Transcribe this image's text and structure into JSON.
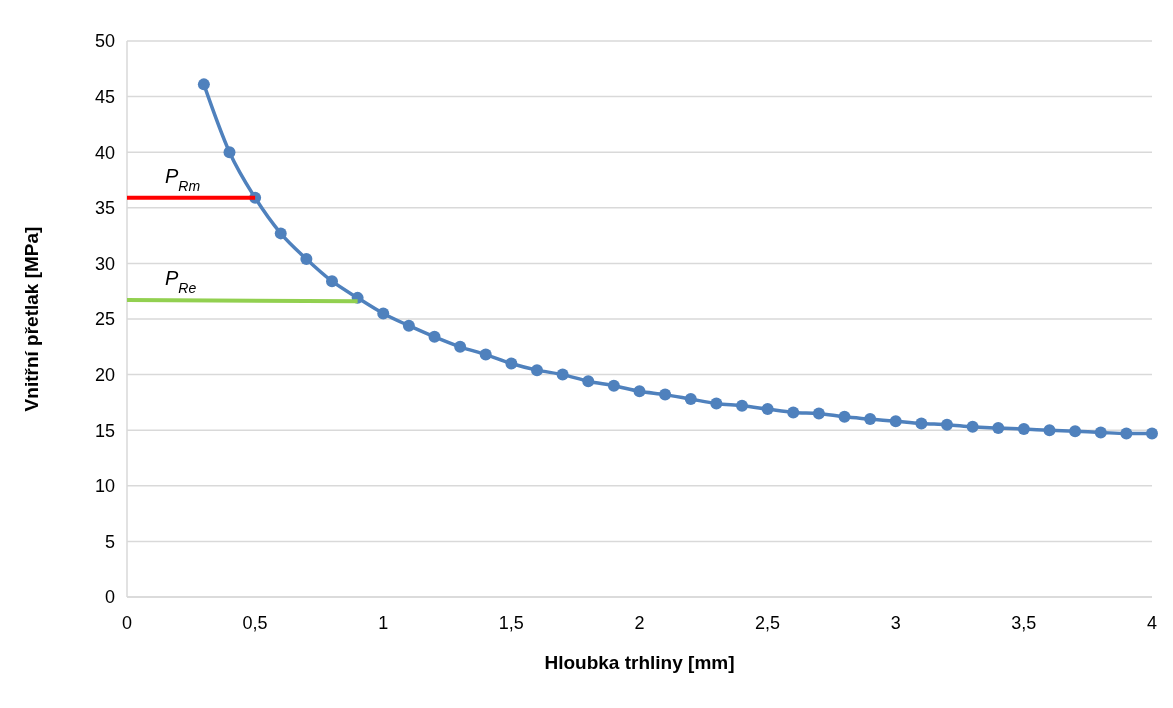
{
  "chart_data": {
    "type": "line",
    "xlabel": "Hloubka trhliny [mm]",
    "ylabel": "Vnitřní přetlak [MPa]",
    "xlim": [
      0,
      4
    ],
    "ylim": [
      0,
      50
    ],
    "xticks": [
      0,
      {
        "value": 0.5,
        "label": "0,5"
      },
      1,
      {
        "value": 1.5,
        "label": "1,5"
      },
      2,
      {
        "value": 2.5,
        "label": "2,5"
      },
      3,
      {
        "value": 3.5,
        "label": "3,5"
      },
      4
    ],
    "yticks": [
      0,
      5,
      10,
      15,
      20,
      25,
      30,
      35,
      40,
      45,
      50
    ],
    "grid": "y",
    "series": [
      {
        "color": "#4f81bd",
        "marker": "circle",
        "x": [
          0.3,
          0.4,
          0.5,
          0.6,
          0.7,
          0.8,
          0.9,
          1.0,
          1.1,
          1.2,
          1.3,
          1.4,
          1.5,
          1.6,
          1.7,
          1.8,
          1.9,
          2.0,
          2.1,
          2.2,
          2.3,
          2.4,
          2.5,
          2.6,
          2.7,
          2.8,
          2.9,
          3.0,
          3.1,
          3.2,
          3.3,
          3.4,
          3.5,
          3.6,
          3.7,
          3.8,
          3.9,
          4.0
        ],
        "values": [
          46.1,
          40.0,
          35.9,
          32.7,
          30.4,
          28.4,
          26.9,
          25.5,
          24.4,
          23.4,
          22.5,
          21.8,
          21.0,
          20.4,
          20.0,
          19.4,
          19.0,
          18.5,
          18.2,
          17.8,
          17.4,
          17.2,
          16.9,
          16.6,
          16.5,
          16.2,
          16.0,
          15.8,
          15.6,
          15.5,
          15.3,
          15.2,
          15.1,
          15.0,
          14.9,
          14.8,
          14.7,
          14.7
        ]
      },
      {
        "name": "P$_{Rm}$",
        "color": "#ff0000",
        "marker": "none",
        "x": [
          0,
          0.5
        ],
        "values": [
          35.9,
          35.9
        ]
      },
      {
        "name": "P$_{Re}$",
        "color": "#92d050",
        "marker": "none",
        "x": [
          0,
          0.9
        ],
        "values": [
          26.7,
          26.6
        ]
      }
    ]
  }
}
